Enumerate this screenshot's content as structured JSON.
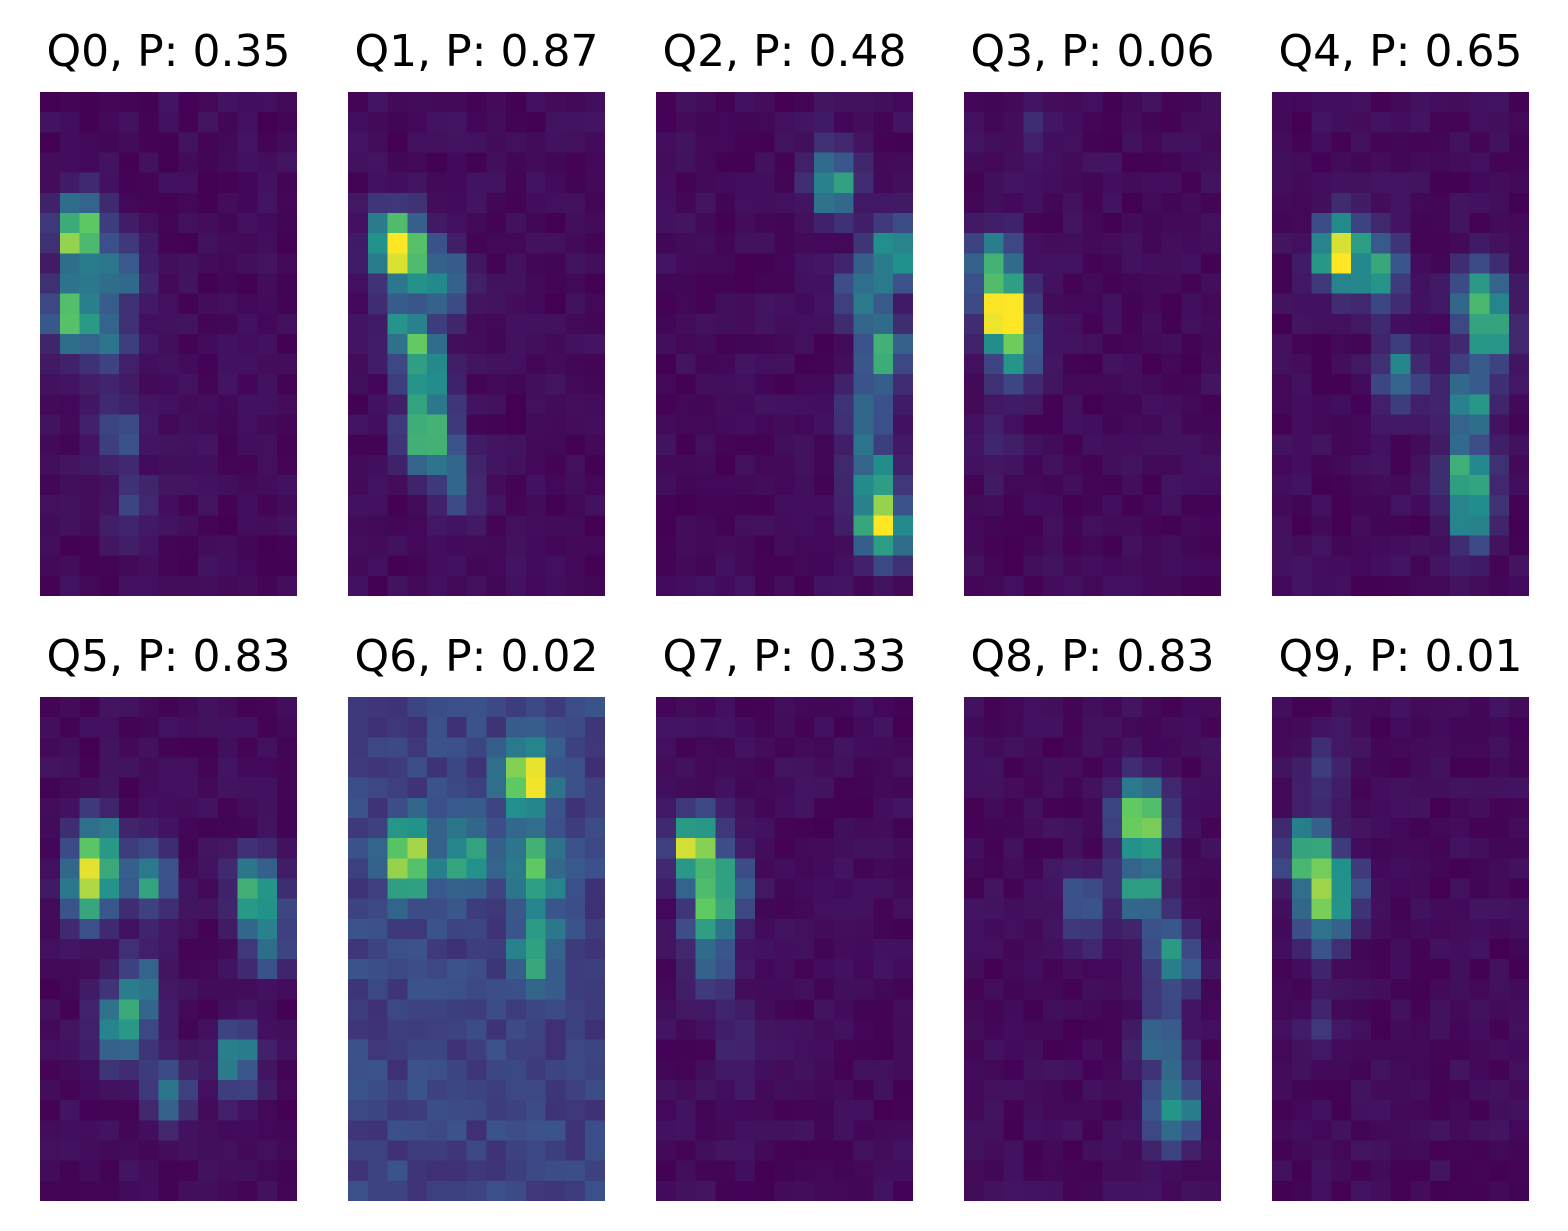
{
  "chart_data": [
    {
      "type": "heatmap",
      "title": "Q0, P: 0.35",
      "colormap": "viridis",
      "grid": false,
      "blobs": [
        {
          "r": 6.5,
          "c": 1.5,
          "v": 1.0
        },
        {
          "r": 10.5,
          "c": 1.2,
          "v": 0.75
        },
        {
          "r": 8.5,
          "c": 3.5,
          "v": 0.35
        },
        {
          "r": 12.0,
          "c": 3.0,
          "v": 0.35
        },
        {
          "r": 16.5,
          "c": 3.5,
          "v": 0.25
        },
        {
          "r": 20.0,
          "c": 4.0,
          "v": 0.15
        }
      ]
    },
    {
      "type": "heatmap",
      "title": "Q1, P: 0.87",
      "colormap": "viridis",
      "grid": false,
      "blobs": [
        {
          "r": 7.5,
          "c": 2.5,
          "v": 1.0
        },
        {
          "r": 7.0,
          "c": 1.5,
          "v": 0.55
        },
        {
          "r": 9.0,
          "c": 4.5,
          "v": 0.45
        },
        {
          "r": 11.5,
          "c": 2.5,
          "v": 0.6
        },
        {
          "r": 13.5,
          "c": 3.5,
          "v": 0.5
        },
        {
          "r": 16.5,
          "c": 3.5,
          "v": 1.0
        },
        {
          "r": 19.0,
          "c": 5.0,
          "v": 0.3
        }
      ]
    },
    {
      "type": "heatmap",
      "title": "Q2, P: 0.48",
      "colormap": "viridis",
      "grid": false,
      "blobs": [
        {
          "r": 4.0,
          "c": 8.5,
          "v": 0.55
        },
        {
          "r": 7.5,
          "c": 11.5,
          "v": 0.6
        },
        {
          "r": 9.5,
          "c": 10.0,
          "v": 0.4
        },
        {
          "r": 12.5,
          "c": 11.0,
          "v": 0.55
        },
        {
          "r": 15.5,
          "c": 10.0,
          "v": 0.35
        },
        {
          "r": 18.5,
          "c": 10.5,
          "v": 0.5
        },
        {
          "r": 21.0,
          "c": 11.0,
          "v": 1.0
        }
      ]
    },
    {
      "type": "heatmap",
      "title": "Q3, P: 0.06",
      "colormap": "viridis",
      "grid": false,
      "blobs": [
        {
          "r": 10.5,
          "c": 1.5,
          "v": 1.0
        },
        {
          "r": 8.0,
          "c": 1.0,
          "v": 0.55
        },
        {
          "r": 12.5,
          "c": 2.0,
          "v": 0.45
        },
        {
          "r": 1.5,
          "c": 3.0,
          "v": 0.1
        },
        {
          "r": 17.0,
          "c": 1.0,
          "v": 0.08
        }
      ]
    },
    {
      "type": "heatmap",
      "title": "Q4, P: 0.65",
      "colormap": "viridis",
      "grid": false,
      "blobs": [
        {
          "r": 7.5,
          "c": 3.0,
          "v": 1.0
        },
        {
          "r": 8.5,
          "c": 5.0,
          "v": 0.55
        },
        {
          "r": 9.5,
          "c": 10.0,
          "v": 0.55
        },
        {
          "r": 11.5,
          "c": 10.5,
          "v": 0.6
        },
        {
          "r": 13.5,
          "c": 6.0,
          "v": 0.4
        },
        {
          "r": 15.0,
          "c": 9.5,
          "v": 0.5
        },
        {
          "r": 18.5,
          "c": 9.5,
          "v": 0.65
        },
        {
          "r": 20.5,
          "c": 9.5,
          "v": 0.5
        }
      ]
    },
    {
      "type": "heatmap",
      "title": "Q5, P: 0.83",
      "colormap": "viridis",
      "grid": false,
      "blobs": [
        {
          "r": 9.0,
          "c": 2.0,
          "v": 1.0
        },
        {
          "r": 7.0,
          "c": 2.5,
          "v": 0.6
        },
        {
          "r": 8.5,
          "c": 5.0,
          "v": 0.55
        },
        {
          "r": 9.0,
          "c": 10.5,
          "v": 0.6
        },
        {
          "r": 11.5,
          "c": 11.0,
          "v": 0.5
        },
        {
          "r": 14.0,
          "c": 4.5,
          "v": 0.45
        },
        {
          "r": 16.0,
          "c": 3.5,
          "v": 0.55
        },
        {
          "r": 17.5,
          "c": 9.5,
          "v": 0.45
        },
        {
          "r": 19.0,
          "c": 6.0,
          "v": 0.35
        }
      ]
    },
    {
      "type": "heatmap",
      "title": "Q6, P: 0.02",
      "colormap": "viridis",
      "grid": false,
      "blobs": [
        {
          "r": 7.5,
          "c": 2.5,
          "v": 1.0
        },
        {
          "r": 7.5,
          "c": 5.5,
          "v": 0.45
        },
        {
          "r": 3.5,
          "c": 8.5,
          "v": 0.9
        },
        {
          "r": 8.0,
          "c": 9.0,
          "v": 0.55
        },
        {
          "r": 12.0,
          "c": 9.0,
          "v": 0.45
        }
      ]
    },
    {
      "type": "heatmap",
      "title": "Q7, P: 0.33",
      "colormap": "viridis",
      "grid": false,
      "blobs": [
        {
          "r": 7.0,
          "c": 1.5,
          "v": 1.0
        },
        {
          "r": 9.0,
          "c": 3.0,
          "v": 0.55
        },
        {
          "r": 10.5,
          "c": 2.0,
          "v": 0.45
        },
        {
          "r": 13.0,
          "c": 2.5,
          "v": 0.25
        },
        {
          "r": 17.0,
          "c": 4.0,
          "v": 0.12
        }
      ]
    },
    {
      "type": "heatmap",
      "title": "Q8, P: 0.83",
      "colormap": "viridis",
      "grid": false,
      "blobs": [
        {
          "r": 5.5,
          "c": 8.5,
          "v": 1.0
        },
        {
          "r": 9.0,
          "c": 8.5,
          "v": 0.55
        },
        {
          "r": 10.0,
          "c": 5.5,
          "v": 0.35
        },
        {
          "r": 12.5,
          "c": 10.0,
          "v": 0.5
        },
        {
          "r": 16.5,
          "c": 9.5,
          "v": 0.35
        },
        {
          "r": 20.0,
          "c": 10.0,
          "v": 0.7
        }
      ]
    },
    {
      "type": "heatmap",
      "title": "Q9, P: 0.01",
      "colormap": "viridis",
      "grid": false,
      "blobs": [
        {
          "r": 7.5,
          "c": 1.5,
          "v": 1.0
        },
        {
          "r": 9.0,
          "c": 3.0,
          "v": 0.45
        },
        {
          "r": 10.5,
          "c": 2.0,
          "v": 0.5
        },
        {
          "r": 3.0,
          "c": 2.0,
          "v": 0.15
        },
        {
          "r": 16.0,
          "c": 2.0,
          "v": 0.1
        }
      ]
    }
  ]
}
